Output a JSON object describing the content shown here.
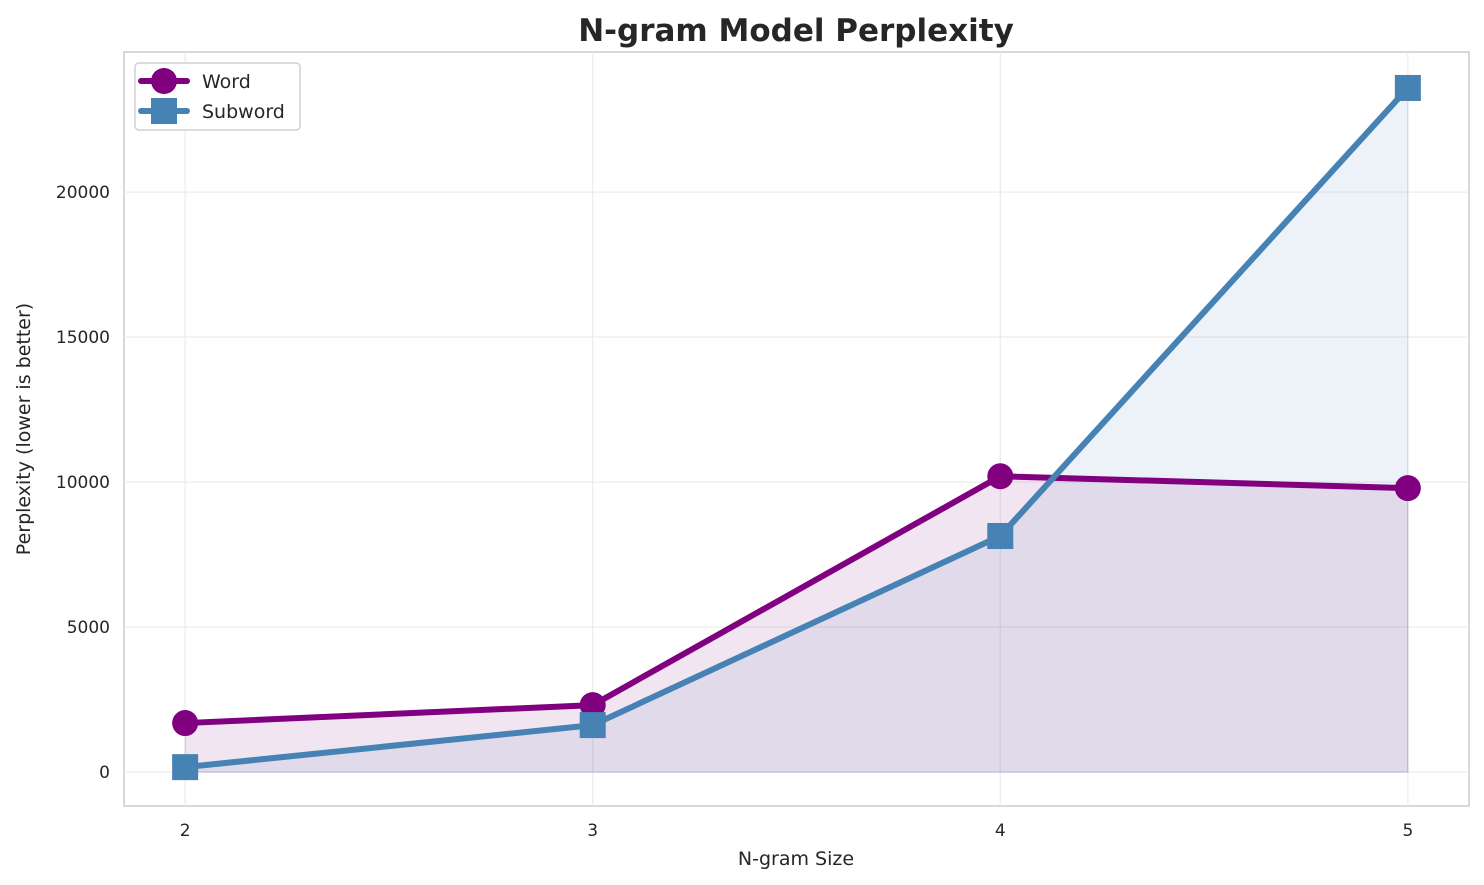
{
  "chart_data": {
    "type": "line",
    "title": "N-gram Model Perplexity",
    "xlabel": "N-gram Size",
    "ylabel": "Perplexity (lower is better)",
    "x": [
      2,
      3,
      4,
      5
    ],
    "xticks": [
      "2",
      "3",
      "4",
      "5"
    ],
    "yticks": [
      "0",
      "5000",
      "10000",
      "15000",
      "20000"
    ],
    "ylim": [
      -1170,
      24830
    ],
    "xlim": [
      1.85,
      5.15
    ],
    "grid": true,
    "legend": "top-left",
    "series": [
      {
        "name": "Word",
        "values": [
          1690,
          2310,
          10200,
          9790
        ],
        "color": "#800080",
        "marker": "circle",
        "fill": "#800080"
      },
      {
        "name": "Subword",
        "values": [
          170,
          1620,
          8140,
          23590
        ],
        "color": "#4682b4",
        "marker": "square",
        "fill": "#4682b4"
      }
    ]
  }
}
